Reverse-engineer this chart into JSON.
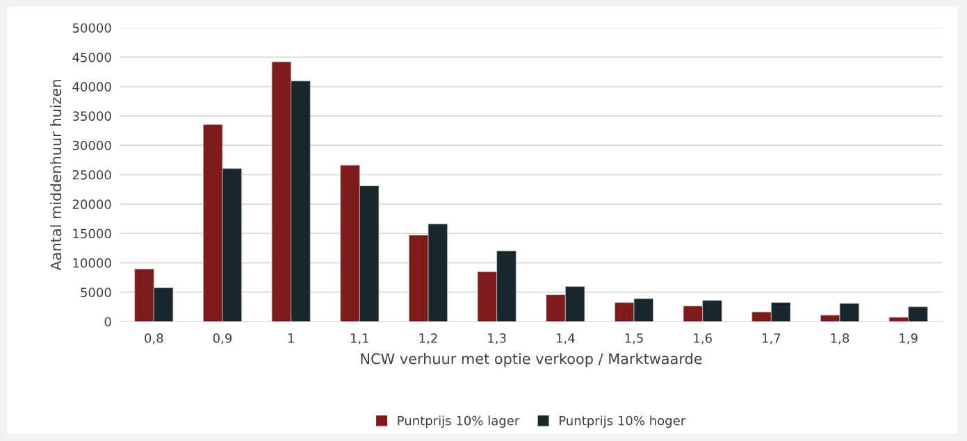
{
  "chart_data": {
    "type": "bar",
    "xlabel": "NCW verhuur met optie verkoop / Marktwaarde",
    "ylabel": "Aantal middenhuur huizen",
    "categories": [
      "0,8",
      "0,9",
      "1",
      "1,1",
      "1,2",
      "1,3",
      "1,4",
      "1,5",
      "1,6",
      "1,7",
      "1,8",
      "1,9"
    ],
    "series": [
      {
        "name": "Puntprijs 10% lager",
        "color": "#7f1a1b",
        "values": [
          8950,
          33530,
          44210,
          26600,
          14710,
          8480,
          4540,
          3230,
          2640,
          1640,
          1080,
          720
        ]
      },
      {
        "name": "Puntprijs 10% hoger",
        "color": "#18272c",
        "values": [
          5750,
          26040,
          40940,
          23090,
          16610,
          12030,
          5960,
          3900,
          3600,
          3240,
          3080,
          2520
        ]
      }
    ],
    "ylim": [
      0,
      50000
    ],
    "yticks": [
      0,
      5000,
      10000,
      15000,
      20000,
      25000,
      30000,
      35000,
      40000,
      45000,
      50000
    ],
    "grid": "y",
    "legend": "bottom"
  }
}
